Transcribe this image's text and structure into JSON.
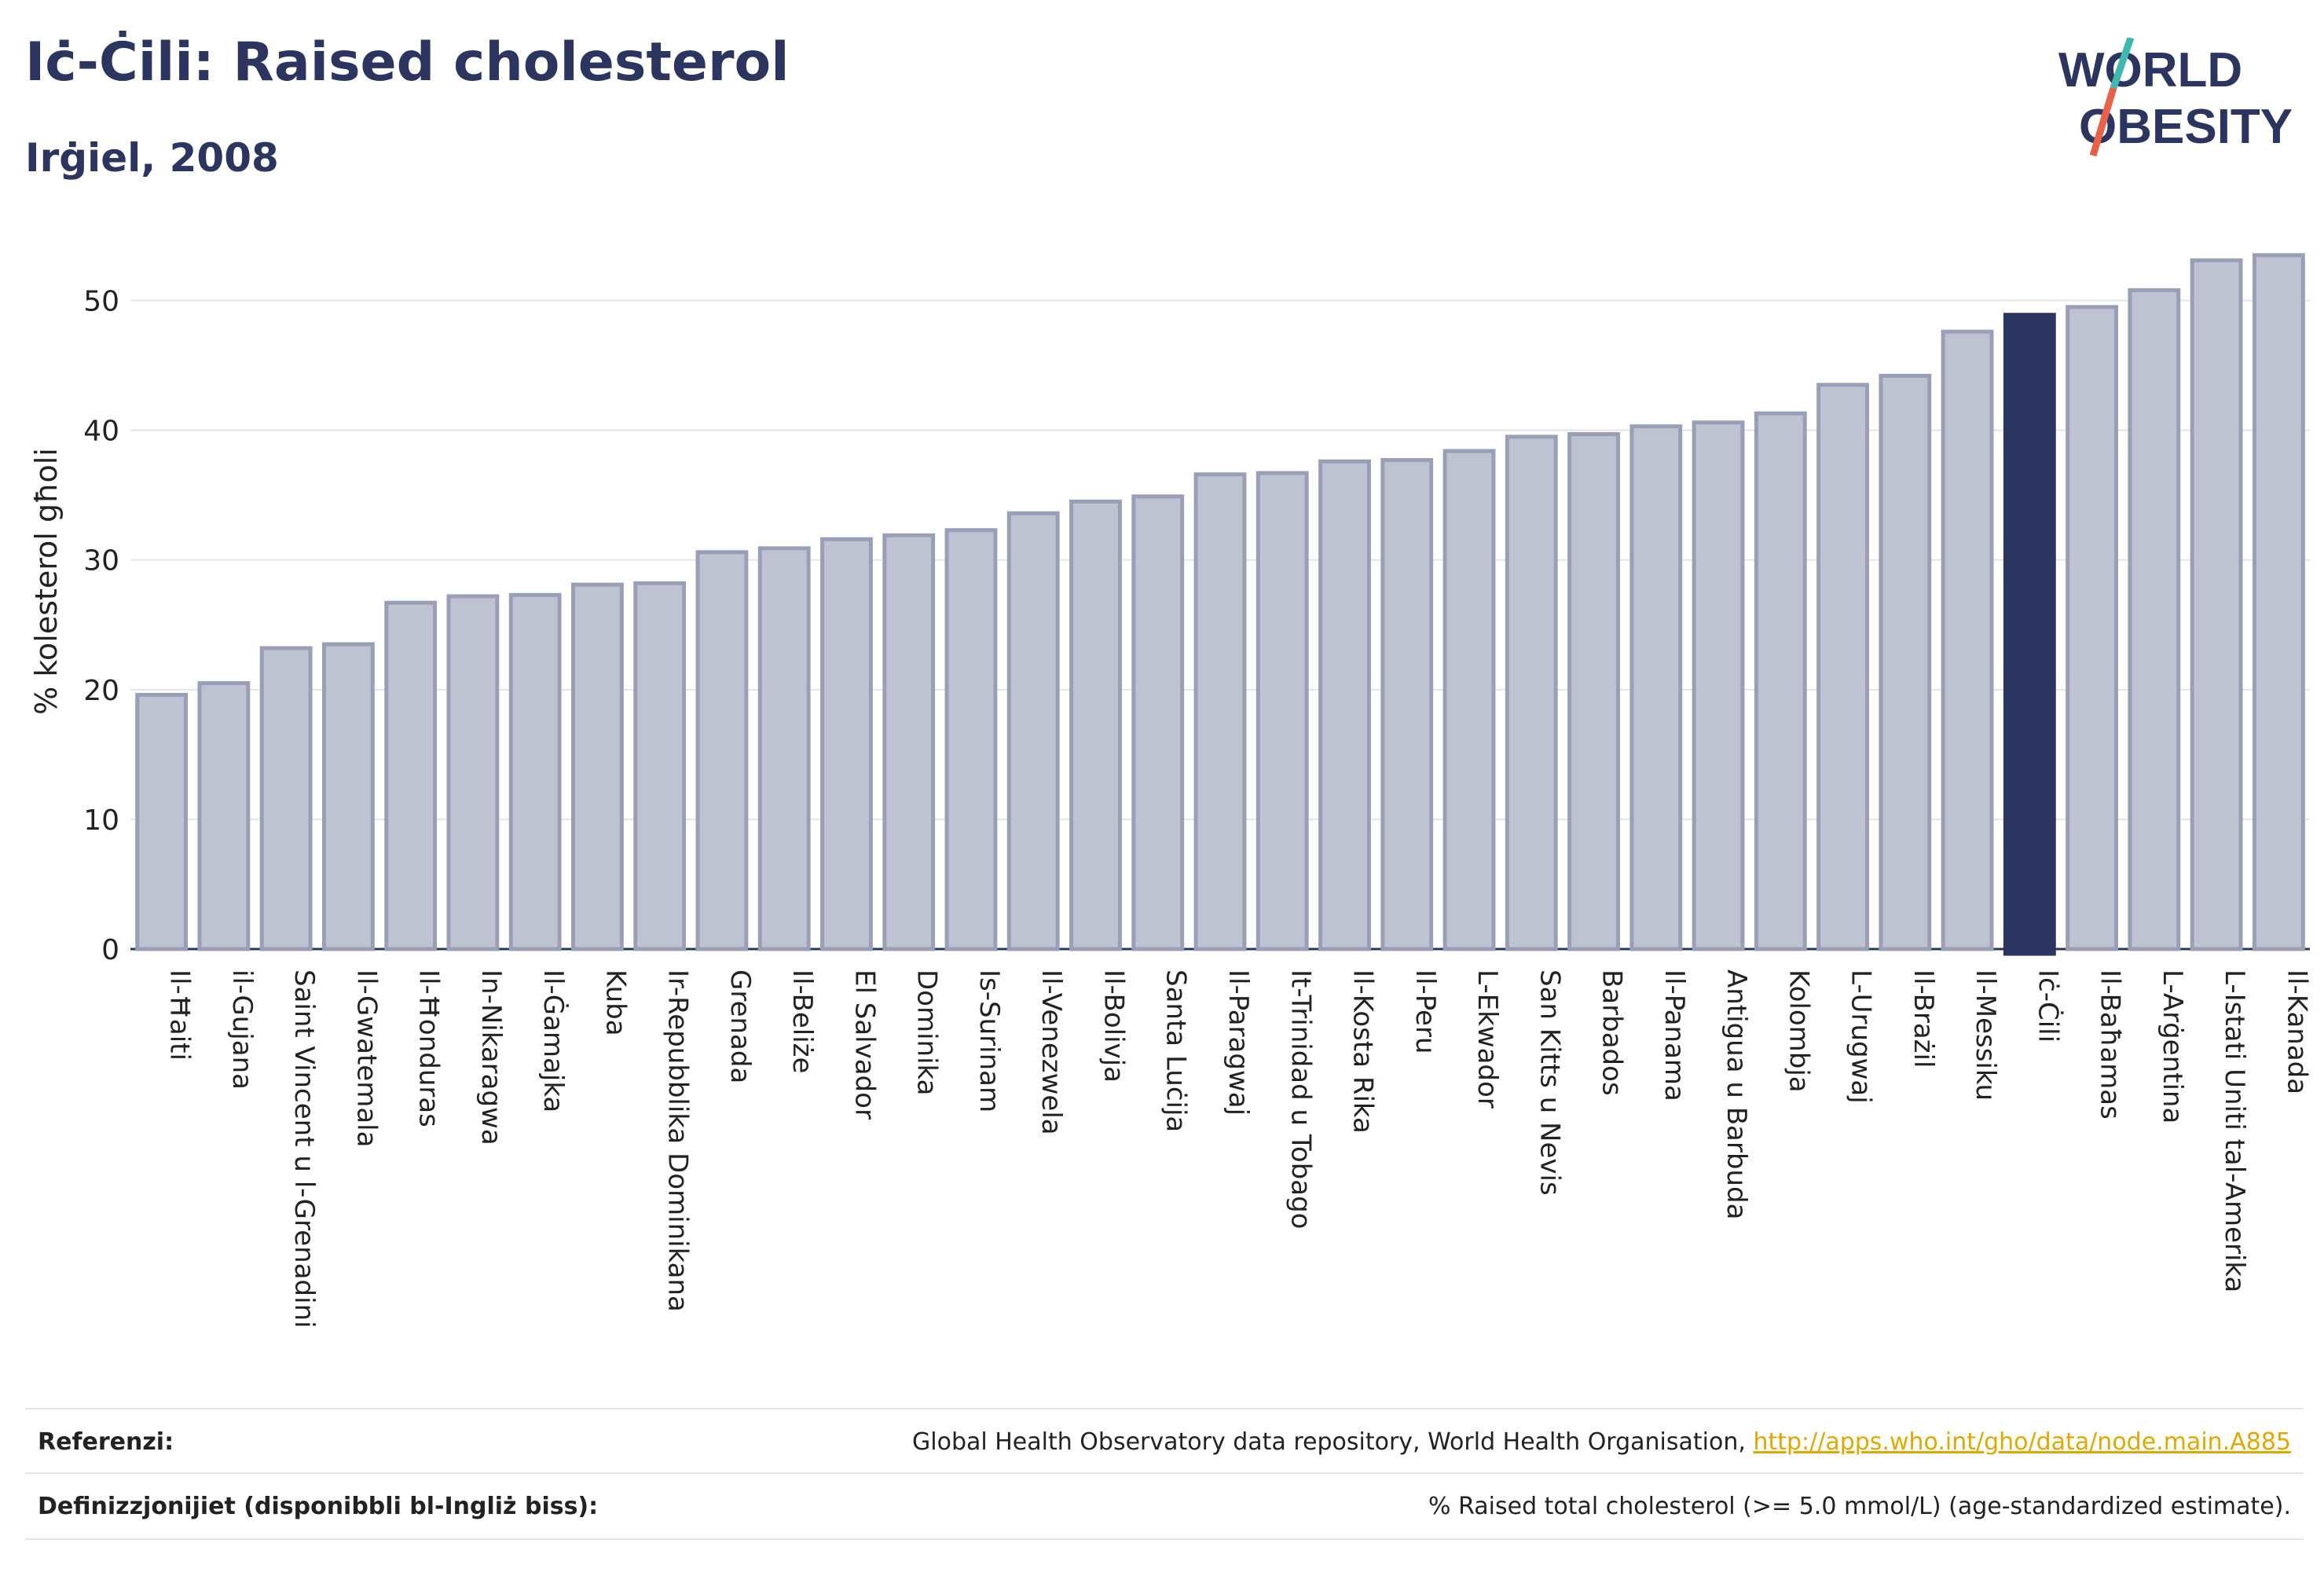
{
  "header": {
    "title": "Iċ-Ċili: Raised cholesterol",
    "subtitle": "Irġiel, 2008"
  },
  "logo": {
    "line1": "WORLD",
    "line2": "OBESITY",
    "accent_color": "#e8624a",
    "accent2_color": "#3fb8b0"
  },
  "chart_data": {
    "type": "bar",
    "ylabel": "% kolesterol għoli",
    "ylim": [
      0,
      55
    ],
    "yticks": [
      0,
      10,
      20,
      30,
      40,
      50
    ],
    "grid": true,
    "highlight": "Iċ-Ċili",
    "colors": {
      "bar": "#bfc2d0",
      "bar_edge": "#9a9fb8",
      "highlight": "#2b3560"
    },
    "categories": [
      "Il-Ħaiti",
      "il-Gujana",
      "Saint Vincent u l-Grenadini",
      "Il-Gwatemala",
      "Il-Ħonduras",
      "In-Nikaragwa",
      "Il-Ġamajka",
      "Kuba",
      "Ir-Repubblika Dominikana",
      "Grenada",
      "Il-Beliże",
      "El Salvador",
      "Dominika",
      "Is-Surinam",
      "Il-Venezwela",
      "Il-Bolivja",
      "Santa Luċija",
      "Il-Paragwaj",
      "It-Trinidad u Tobago",
      "Il-Kosta Rika",
      "Il-Peru",
      "L-Ekwador",
      "San Kitts u Nevis",
      "Barbados",
      "Il-Panama",
      "Antigua u Barbuda",
      "Kolombja",
      "L-Urugwaj",
      "Il-Brażil",
      "Il-Messiku",
      "Iċ-Ċili",
      "Il-Baħamas",
      "L-Arġentina",
      "L-Istati Uniti tal-Amerika",
      "Il-Kanada"
    ],
    "values": [
      19.6,
      20.5,
      23.2,
      23.5,
      26.7,
      27.2,
      27.3,
      28.1,
      28.2,
      30.6,
      30.9,
      31.6,
      31.9,
      32.3,
      33.6,
      34.5,
      34.9,
      36.6,
      36.7,
      37.6,
      37.7,
      38.4,
      39.5,
      39.7,
      40.3,
      40.6,
      41.3,
      43.5,
      44.2,
      47.6,
      48.9,
      49.5,
      50.8,
      53.1,
      53.5
    ]
  },
  "footer": {
    "references_label": "Referenzi:",
    "references_text": "Global Health Observatory data repository, World Health Organisation, ",
    "references_link": "http://apps.who.int/gho/data/node.main.A885",
    "definitions_label": "Definizzjonijiet (disponibbli bl-Ingliż biss):",
    "definitions_text": "% Raised total cholesterol (>= 5.0 mmol/L) (age-standardized estimate)."
  }
}
